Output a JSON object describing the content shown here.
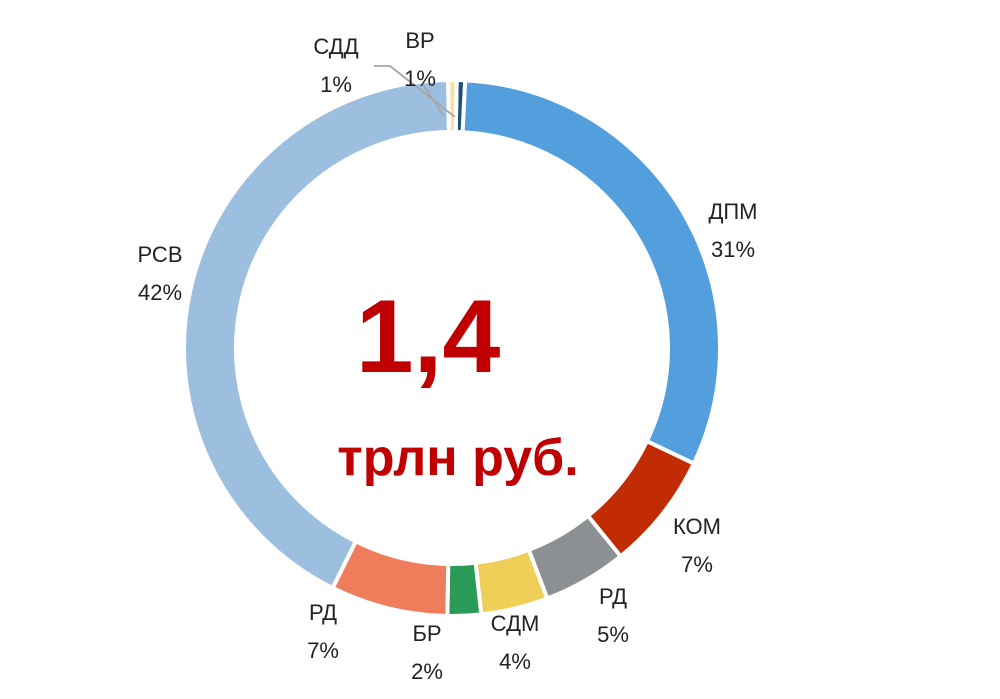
{
  "chart_data": {
    "type": "pie",
    "style": "donut",
    "center_value": "1,4",
    "center_unit": "трлн руб.",
    "slices": [
      {
        "name": "ВР",
        "label": "1%",
        "value": 0.5,
        "color": "#1f4e79"
      },
      {
        "name": "ДПМ",
        "label": "31%",
        "value": 31,
        "color": "#539fdd"
      },
      {
        "name": "КОМ",
        "label": "7%",
        "value": 7,
        "color": "#c12c04"
      },
      {
        "name": "РД",
        "label": "5%",
        "value": 5,
        "color": "#8d9093"
      },
      {
        "name": "СДМ",
        "label": "4%",
        "value": 4,
        "color": "#efcf57"
      },
      {
        "name": "БР",
        "label": "2%",
        "value": 2,
        "color": "#2a9a58"
      },
      {
        "name": "РД",
        "label": "7%",
        "value": 7,
        "color": "#ef7d5b"
      },
      {
        "name": "РСВ",
        "label": "42%",
        "value": 42,
        "color": "#9cbfe0"
      },
      {
        "name": "СДД",
        "label": "1%",
        "value": 0.5,
        "color": "#f2e3a8"
      }
    ]
  }
}
